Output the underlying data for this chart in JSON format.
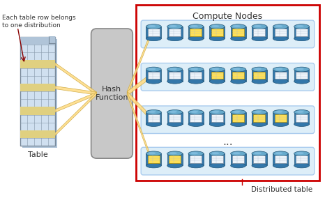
{
  "title": "Compute Nodes",
  "label_table": "Table",
  "label_hash": "Hash\nFunction",
  "label_dist_table": "Distributed table",
  "label_each_row": "Each table row belongs\nto one distribution",
  "bg_color": "#ffffff",
  "red_border_color": "#cc0000",
  "hash_box_color": "#c8c8c8",
  "hash_box_edge": "#888888",
  "node_row_bg": "#ddeef8",
  "node_row_border": "#aaccee",
  "arrow_color": "#ffdd88",
  "arrow_edge_color": "#ccaa44",
  "table_color": "#d0e0f0",
  "table_border": "#778899",
  "dots_text": "...",
  "figsize": [
    4.66,
    2.84
  ],
  "dpi": 100
}
